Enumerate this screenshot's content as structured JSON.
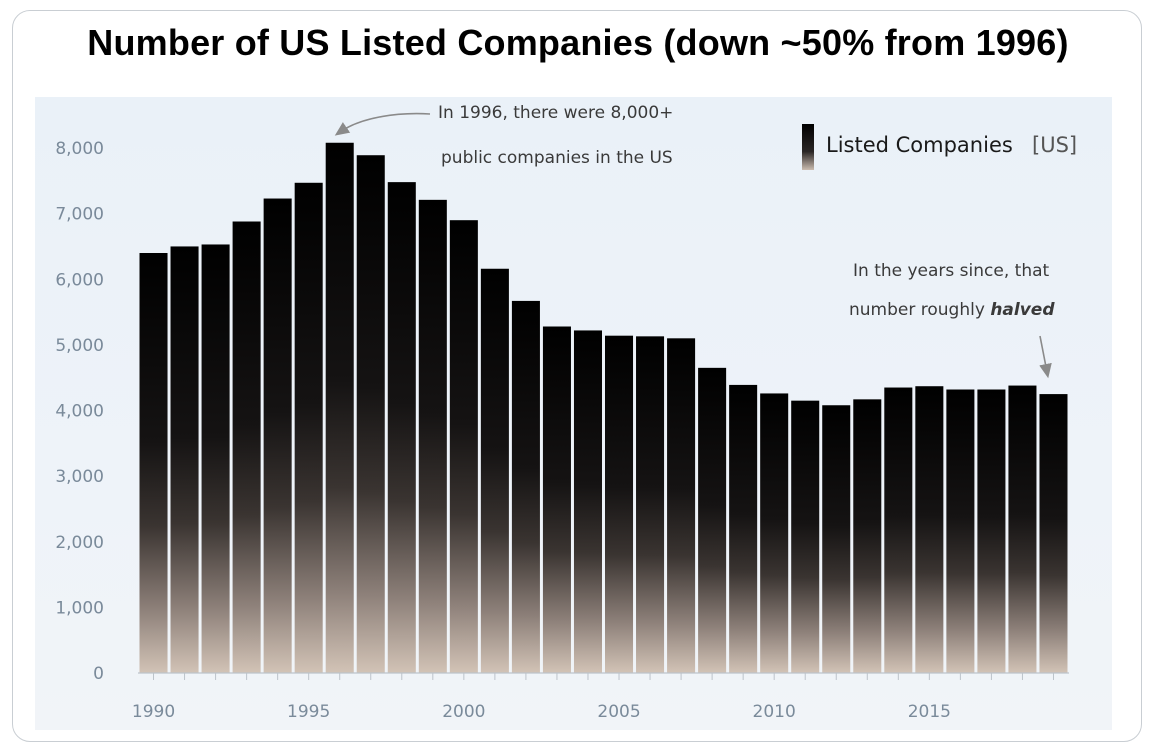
{
  "chart_data": {
    "type": "bar",
    "title": "Number of US Listed Companies (down ~50% from 1996)",
    "xlabel": "",
    "ylabel": "",
    "ylim": [
      0,
      8500
    ],
    "yticks": [
      "0",
      "1,000",
      "2,000",
      "3,000",
      "4,000",
      "5,000",
      "6,000",
      "7,000",
      "8,000"
    ],
    "ytick_values": [
      0,
      1000,
      2000,
      3000,
      4000,
      5000,
      6000,
      7000,
      8000
    ],
    "xticks": [
      "1990",
      "1995",
      "2000",
      "2005",
      "2010",
      "2015"
    ],
    "xtick_values": [
      1990,
      1995,
      2000,
      2005,
      2010,
      2015
    ],
    "grid": false,
    "legend_position": "top-right",
    "categories": [
      1990,
      1991,
      1992,
      1993,
      1994,
      1995,
      1996,
      1997,
      1998,
      1999,
      2000,
      2001,
      2002,
      2003,
      2004,
      2005,
      2006,
      2007,
      2008,
      2009,
      2010,
      2011,
      2012,
      2013,
      2014,
      2015,
      2016,
      2017,
      2018,
      2019
    ],
    "series": [
      {
        "name": "Listed Companies",
        "values": [
          6400,
          6500,
          6530,
          6880,
          7230,
          7470,
          8080,
          7890,
          7480,
          7210,
          6900,
          6160,
          5670,
          5280,
          5220,
          5140,
          5130,
          5100,
          4650,
          4390,
          4260,
          4150,
          4080,
          4170,
          4350,
          4370,
          4320,
          4320,
          4380,
          4250
        ]
      }
    ],
    "legend": {
      "label": "Listed Companies",
      "unit": "[US]"
    },
    "annotations": {
      "peak_line1": "In 1996, there were 8,000+",
      "peak_line2": "public companies in the US",
      "since_line1": "In the years since, that",
      "since_line2": "number roughly",
      "since_emph": "halved"
    },
    "colors": {
      "bar_top": "#000000",
      "bar_mid": "#232020",
      "bar_bottom": "#cdbdb0",
      "axis_tick_text": "#7a8a9a",
      "panel_background": "#eef3f9"
    }
  }
}
